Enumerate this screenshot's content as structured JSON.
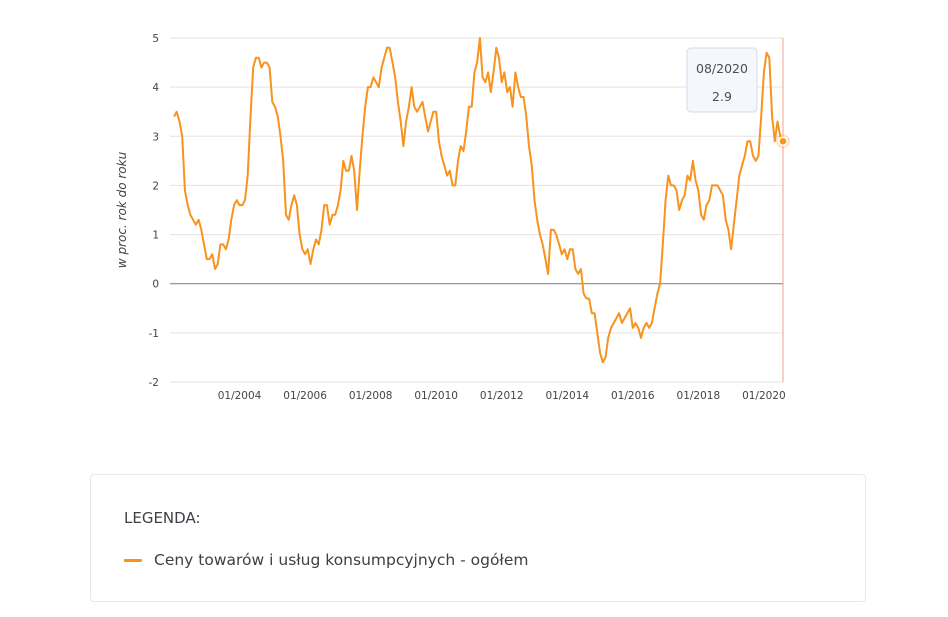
{
  "colors": {
    "series": "#f7931e",
    "grid": "#e3e3e3",
    "zero_line": "#8a8a8a",
    "crosshair": "#f2a08a",
    "text": "#444444"
  },
  "tooltip": {
    "date": "08/2020",
    "value": "2.9"
  },
  "legend": {
    "title": "LEGENDA:",
    "item_label": "Ceny towarów i usług konsumpcyjnych - ogółem"
  },
  "chart_data": {
    "type": "line",
    "title": "",
    "xlabel": "",
    "ylabel": "w proc. rok do roku",
    "ylim": [
      -2,
      5
    ],
    "xlim": [
      "2002-01",
      "2020-08"
    ],
    "grid": true,
    "yticks": [
      "5",
      "4",
      "3",
      "2",
      "1",
      "0",
      "-1",
      "-2"
    ],
    "xticks": [
      "01/2004",
      "01/2006",
      "01/2008",
      "01/2010",
      "01/2012",
      "01/2014",
      "01/2016",
      "01/2018",
      "01/2020"
    ],
    "series": [
      {
        "name": "Ceny towarów i usług konsumpcyjnych - ogółem",
        "points": [
          [
            "2002-01",
            3.4
          ],
          [
            "2002-02",
            3.5
          ],
          [
            "2002-03",
            3.3
          ],
          [
            "2002-04",
            3.0
          ],
          [
            "2002-05",
            1.9
          ],
          [
            "2002-06",
            1.6
          ],
          [
            "2002-07",
            1.4
          ],
          [
            "2002-08",
            1.3
          ],
          [
            "2002-09",
            1.2
          ],
          [
            "2002-10",
            1.3
          ],
          [
            "2002-11",
            1.1
          ],
          [
            "2002-12",
            0.8
          ],
          [
            "2003-01",
            0.5
          ],
          [
            "2003-02",
            0.5
          ],
          [
            "2003-03",
            0.6
          ],
          [
            "2003-04",
            0.3
          ],
          [
            "2003-05",
            0.4
          ],
          [
            "2003-06",
            0.8
          ],
          [
            "2003-07",
            0.8
          ],
          [
            "2003-08",
            0.7
          ],
          [
            "2003-09",
            0.9
          ],
          [
            "2003-10",
            1.3
          ],
          [
            "2003-11",
            1.6
          ],
          [
            "2003-12",
            1.7
          ],
          [
            "2004-01",
            1.6
          ],
          [
            "2004-02",
            1.6
          ],
          [
            "2004-03",
            1.7
          ],
          [
            "2004-04",
            2.2
          ],
          [
            "2004-05",
            3.4
          ],
          [
            "2004-06",
            4.4
          ],
          [
            "2004-07",
            4.6
          ],
          [
            "2004-08",
            4.6
          ],
          [
            "2004-09",
            4.4
          ],
          [
            "2004-10",
            4.5
          ],
          [
            "2004-11",
            4.5
          ],
          [
            "2004-12",
            4.4
          ],
          [
            "2005-01",
            3.7
          ],
          [
            "2005-02",
            3.6
          ],
          [
            "2005-03",
            3.4
          ],
          [
            "2005-04",
            3.0
          ],
          [
            "2005-05",
            2.5
          ],
          [
            "2005-06",
            1.4
          ],
          [
            "2005-07",
            1.3
          ],
          [
            "2005-08",
            1.6
          ],
          [
            "2005-09",
            1.8
          ],
          [
            "2005-10",
            1.6
          ],
          [
            "2005-11",
            1.0
          ],
          [
            "2005-12",
            0.7
          ],
          [
            "2006-01",
            0.6
          ],
          [
            "2006-02",
            0.7
          ],
          [
            "2006-03",
            0.4
          ],
          [
            "2006-04",
            0.7
          ],
          [
            "2006-05",
            0.9
          ],
          [
            "2006-06",
            0.8
          ],
          [
            "2006-07",
            1.1
          ],
          [
            "2006-08",
            1.6
          ],
          [
            "2006-09",
            1.6
          ],
          [
            "2006-10",
            1.2
          ],
          [
            "2006-11",
            1.4
          ],
          [
            "2006-12",
            1.4
          ],
          [
            "2007-01",
            1.6
          ],
          [
            "2007-02",
            1.9
          ],
          [
            "2007-03",
            2.5
          ],
          [
            "2007-04",
            2.3
          ],
          [
            "2007-05",
            2.3
          ],
          [
            "2007-06",
            2.6
          ],
          [
            "2007-07",
            2.3
          ],
          [
            "2007-08",
            1.5
          ],
          [
            "2007-09",
            2.3
          ],
          [
            "2007-10",
            3.0
          ],
          [
            "2007-11",
            3.6
          ],
          [
            "2007-12",
            4.0
          ],
          [
            "2008-01",
            4.0
          ],
          [
            "2008-02",
            4.2
          ],
          [
            "2008-03",
            4.1
          ],
          [
            "2008-04",
            4.0
          ],
          [
            "2008-05",
            4.4
          ],
          [
            "2008-06",
            4.6
          ],
          [
            "2008-07",
            4.8
          ],
          [
            "2008-08",
            4.8
          ],
          [
            "2008-09",
            4.5
          ],
          [
            "2008-10",
            4.2
          ],
          [
            "2008-11",
            3.7
          ],
          [
            "2008-12",
            3.3
          ],
          [
            "2009-01",
            2.8
          ],
          [
            "2009-02",
            3.3
          ],
          [
            "2009-03",
            3.6
          ],
          [
            "2009-04",
            4.0
          ],
          [
            "2009-05",
            3.6
          ],
          [
            "2009-06",
            3.5
          ],
          [
            "2009-07",
            3.6
          ],
          [
            "2009-08",
            3.7
          ],
          [
            "2009-09",
            3.4
          ],
          [
            "2009-10",
            3.1
          ],
          [
            "2009-11",
            3.3
          ],
          [
            "2009-12",
            3.5
          ],
          [
            "2010-01",
            3.5
          ],
          [
            "2010-02",
            2.9
          ],
          [
            "2010-03",
            2.6
          ],
          [
            "2010-04",
            2.4
          ],
          [
            "2010-05",
            2.2
          ],
          [
            "2010-06",
            2.3
          ],
          [
            "2010-07",
            2.0
          ],
          [
            "2010-08",
            2.0
          ],
          [
            "2010-09",
            2.5
          ],
          [
            "2010-10",
            2.8
          ],
          [
            "2010-11",
            2.7
          ],
          [
            "2010-12",
            3.1
          ],
          [
            "2011-01",
            3.6
          ],
          [
            "2011-02",
            3.6
          ],
          [
            "2011-03",
            4.3
          ],
          [
            "2011-04",
            4.5
          ],
          [
            "2011-05",
            5.0
          ],
          [
            "2011-06",
            4.2
          ],
          [
            "2011-07",
            4.1
          ],
          [
            "2011-08",
            4.3
          ],
          [
            "2011-09",
            3.9
          ],
          [
            "2011-10",
            4.3
          ],
          [
            "2011-11",
            4.8
          ],
          [
            "2011-12",
            4.6
          ],
          [
            "2012-01",
            4.1
          ],
          [
            "2012-02",
            4.3
          ],
          [
            "2012-03",
            3.9
          ],
          [
            "2012-04",
            4.0
          ],
          [
            "2012-05",
            3.6
          ],
          [
            "2012-06",
            4.3
          ],
          [
            "2012-07",
            4.0
          ],
          [
            "2012-08",
            3.8
          ],
          [
            "2012-09",
            3.8
          ],
          [
            "2012-10",
            3.4
          ],
          [
            "2012-11",
            2.8
          ],
          [
            "2012-12",
            2.4
          ],
          [
            "2013-01",
            1.7
          ],
          [
            "2013-02",
            1.3
          ],
          [
            "2013-03",
            1.0
          ],
          [
            "2013-04",
            0.8
          ],
          [
            "2013-05",
            0.5
          ],
          [
            "2013-06",
            0.2
          ],
          [
            "2013-07",
            1.1
          ],
          [
            "2013-08",
            1.1
          ],
          [
            "2013-09",
            1.0
          ],
          [
            "2013-10",
            0.8
          ],
          [
            "2013-11",
            0.6
          ],
          [
            "2013-12",
            0.7
          ],
          [
            "2014-01",
            0.5
          ],
          [
            "2014-02",
            0.7
          ],
          [
            "2014-03",
            0.7
          ],
          [
            "2014-04",
            0.3
          ],
          [
            "2014-05",
            0.2
          ],
          [
            "2014-06",
            0.3
          ],
          [
            "2014-07",
            -0.2
          ],
          [
            "2014-08",
            -0.3
          ],
          [
            "2014-09",
            -0.3
          ],
          [
            "2014-10",
            -0.6
          ],
          [
            "2014-11",
            -0.6
          ],
          [
            "2014-12",
            -1.0
          ],
          [
            "2015-01",
            -1.4
          ],
          [
            "2015-02",
            -1.6
          ],
          [
            "2015-03",
            -1.5
          ],
          [
            "2015-04",
            -1.1
          ],
          [
            "2015-05",
            -0.9
          ],
          [
            "2015-06",
            -0.8
          ],
          [
            "2015-07",
            -0.7
          ],
          [
            "2015-08",
            -0.6
          ],
          [
            "2015-09",
            -0.8
          ],
          [
            "2015-10",
            -0.7
          ],
          [
            "2015-11",
            -0.6
          ],
          [
            "2015-12",
            -0.5
          ],
          [
            "2016-01",
            -0.9
          ],
          [
            "2016-02",
            -0.8
          ],
          [
            "2016-03",
            -0.9
          ],
          [
            "2016-04",
            -1.1
          ],
          [
            "2016-05",
            -0.9
          ],
          [
            "2016-06",
            -0.8
          ],
          [
            "2016-07",
            -0.9
          ],
          [
            "2016-08",
            -0.8
          ],
          [
            "2016-09",
            -0.5
          ],
          [
            "2016-10",
            -0.2
          ],
          [
            "2016-11",
            0.0
          ],
          [
            "2016-12",
            0.8
          ],
          [
            "2017-01",
            1.7
          ],
          [
            "2017-02",
            2.2
          ],
          [
            "2017-03",
            2.0
          ],
          [
            "2017-04",
            2.0
          ],
          [
            "2017-05",
            1.9
          ],
          [
            "2017-06",
            1.5
          ],
          [
            "2017-07",
            1.7
          ],
          [
            "2017-08",
            1.8
          ],
          [
            "2017-09",
            2.2
          ],
          [
            "2017-10",
            2.1
          ],
          [
            "2017-11",
            2.5
          ],
          [
            "2017-12",
            2.1
          ],
          [
            "2018-01",
            1.9
          ],
          [
            "2018-02",
            1.4
          ],
          [
            "2018-03",
            1.3
          ],
          [
            "2018-04",
            1.6
          ],
          [
            "2018-05",
            1.7
          ],
          [
            "2018-06",
            2.0
          ],
          [
            "2018-07",
            2.0
          ],
          [
            "2018-08",
            2.0
          ],
          [
            "2018-09",
            1.9
          ],
          [
            "2018-10",
            1.8
          ],
          [
            "2018-11",
            1.3
          ],
          [
            "2018-12",
            1.1
          ],
          [
            "2019-01",
            0.7
          ],
          [
            "2019-02",
            1.2
          ],
          [
            "2019-03",
            1.7
          ],
          [
            "2019-04",
            2.2
          ],
          [
            "2019-05",
            2.4
          ],
          [
            "2019-06",
            2.6
          ],
          [
            "2019-07",
            2.9
          ],
          [
            "2019-08",
            2.9
          ],
          [
            "2019-09",
            2.6
          ],
          [
            "2019-10",
            2.5
          ],
          [
            "2019-11",
            2.6
          ],
          [
            "2019-12",
            3.4
          ],
          [
            "2020-01",
            4.3
          ],
          [
            "2020-02",
            4.7
          ],
          [
            "2020-03",
            4.6
          ],
          [
            "2020-04",
            3.4
          ],
          [
            "2020-05",
            2.9
          ],
          [
            "2020-06",
            3.3
          ],
          [
            "2020-07",
            3.0
          ],
          [
            "2020-08",
            2.9
          ]
        ]
      }
    ]
  }
}
